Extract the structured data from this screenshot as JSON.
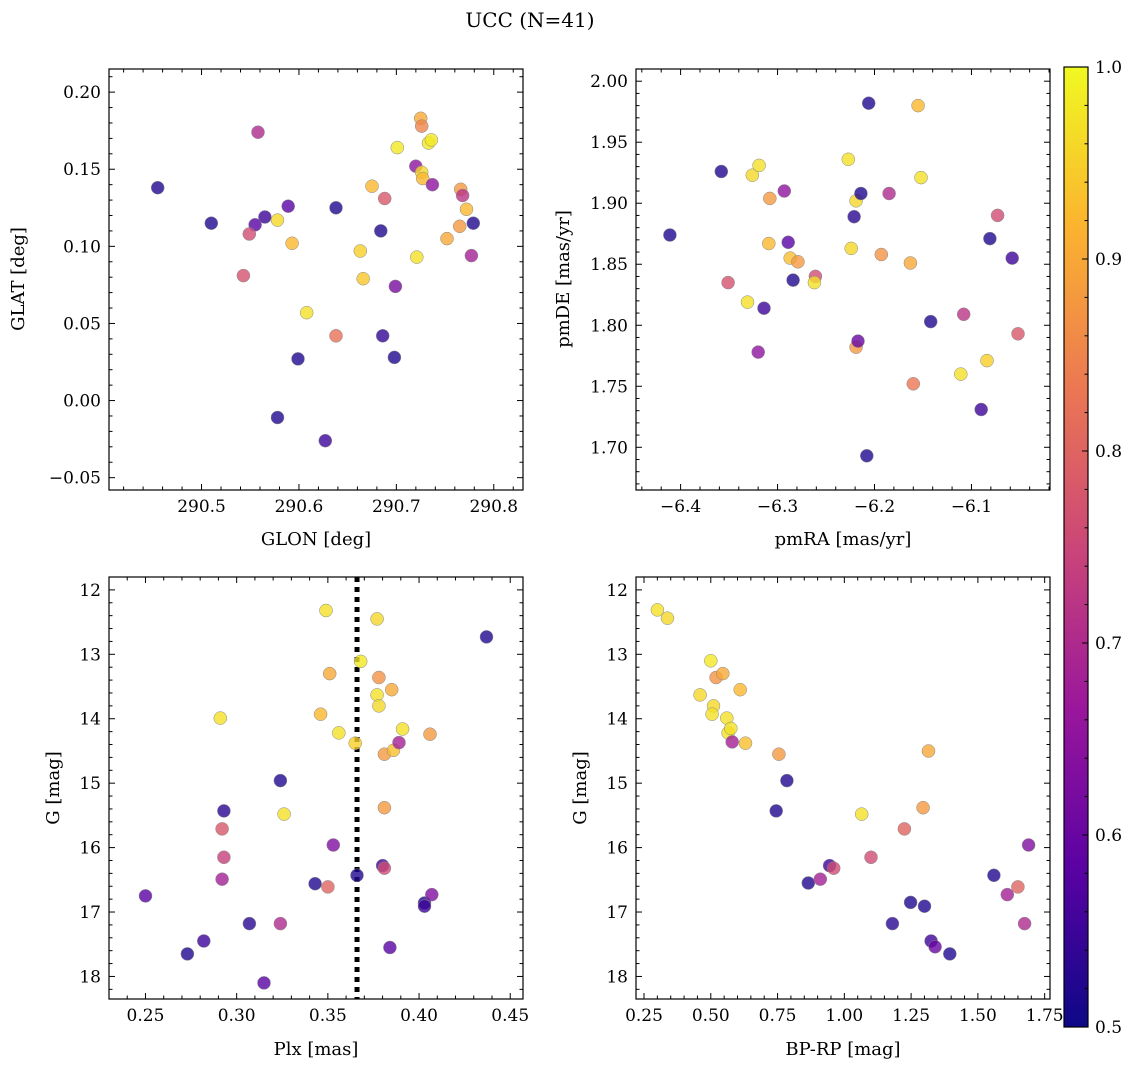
{
  "title": "UCC (N=41)",
  "colorbar": {
    "range": [
      0.5,
      1.0
    ],
    "ticks": [
      0.5,
      0.6,
      0.7,
      0.8,
      0.9,
      1.0
    ],
    "tick_labels": [
      "0.5",
      "0.6",
      "0.7",
      "0.8",
      "0.9",
      "1.0"
    ],
    "colormap": "plasma",
    "colors": [
      "#0d0887",
      "#5b02a3",
      "#9a179b",
      "#cb4678",
      "#eb7852",
      "#fbb32f",
      "#f0f921"
    ]
  },
  "chart_data": [
    {
      "type": "scatter",
      "xlabel": "GLON [deg]",
      "ylabel": "GLAT [deg]",
      "xlim": [
        290.405,
        290.83
      ],
      "ylim": [
        -0.058,
        0.215
      ],
      "xticks": [
        290.5,
        290.6,
        290.7,
        290.8
      ],
      "xtick_labels": [
        "290.5",
        "290.6",
        "290.7",
        "290.8"
      ],
      "yticks": [
        -0.05,
        0.0,
        0.05,
        0.1,
        0.15,
        0.2
      ],
      "ytick_labels": [
        "−0.05",
        "0.00",
        "0.05",
        "0.10",
        "0.15",
        "0.20"
      ],
      "points": [
        {
          "x": 290.455,
          "y": 0.138,
          "c": 0.52
        },
        {
          "x": 290.51,
          "y": 0.115,
          "c": 0.52
        },
        {
          "x": 290.558,
          "y": 0.174,
          "c": 0.7
        },
        {
          "x": 290.565,
          "y": 0.119,
          "c": 0.55
        },
        {
          "x": 290.555,
          "y": 0.114,
          "c": 0.58
        },
        {
          "x": 290.549,
          "y": 0.108,
          "c": 0.76
        },
        {
          "x": 290.543,
          "y": 0.081,
          "c": 0.77
        },
        {
          "x": 290.578,
          "y": 0.117,
          "c": 0.96
        },
        {
          "x": 290.589,
          "y": 0.126,
          "c": 0.58
        },
        {
          "x": 290.593,
          "y": 0.102,
          "c": 0.92
        },
        {
          "x": 290.608,
          "y": 0.057,
          "c": 0.97
        },
        {
          "x": 290.599,
          "y": 0.027,
          "c": 0.52
        },
        {
          "x": 290.578,
          "y": -0.011,
          "c": 0.52
        },
        {
          "x": 290.638,
          "y": 0.125,
          "c": 0.52
        },
        {
          "x": 290.638,
          "y": 0.042,
          "c": 0.82
        },
        {
          "x": 290.627,
          "y": -0.026,
          "c": 0.55
        },
        {
          "x": 290.663,
          "y": 0.097,
          "c": 0.95
        },
        {
          "x": 290.666,
          "y": 0.079,
          "c": 0.94
        },
        {
          "x": 290.675,
          "y": 0.139,
          "c": 0.92
        },
        {
          "x": 290.688,
          "y": 0.131,
          "c": 0.78
        },
        {
          "x": 290.684,
          "y": 0.11,
          "c": 0.52
        },
        {
          "x": 290.686,
          "y": 0.042,
          "c": 0.54
        },
        {
          "x": 290.699,
          "y": 0.074,
          "c": 0.62
        },
        {
          "x": 290.698,
          "y": 0.028,
          "c": 0.52
        },
        {
          "x": 290.701,
          "y": 0.164,
          "c": 0.98
        },
        {
          "x": 290.72,
          "y": 0.152,
          "c": 0.65
        },
        {
          "x": 290.725,
          "y": 0.183,
          "c": 0.9
        },
        {
          "x": 290.726,
          "y": 0.178,
          "c": 0.85
        },
        {
          "x": 290.726,
          "y": 0.148,
          "c": 0.96
        },
        {
          "x": 290.727,
          "y": 0.144,
          "c": 0.92
        },
        {
          "x": 290.733,
          "y": 0.167,
          "c": 0.98
        },
        {
          "x": 290.736,
          "y": 0.169,
          "c": 0.98
        },
        {
          "x": 290.721,
          "y": 0.093,
          "c": 0.97
        },
        {
          "x": 290.737,
          "y": 0.14,
          "c": 0.65
        },
        {
          "x": 290.752,
          "y": 0.105,
          "c": 0.9
        },
        {
          "x": 290.766,
          "y": 0.137,
          "c": 0.88
        },
        {
          "x": 290.765,
          "y": 0.113,
          "c": 0.88
        },
        {
          "x": 290.768,
          "y": 0.133,
          "c": 0.72
        },
        {
          "x": 290.772,
          "y": 0.124,
          "c": 0.92
        },
        {
          "x": 290.779,
          "y": 0.115,
          "c": 0.52
        },
        {
          "x": 290.777,
          "y": 0.094,
          "c": 0.68
        }
      ]
    },
    {
      "type": "scatter",
      "xlabel": "pmRA [mas/yr]",
      "ylabel": "pmDE [mas/yr]",
      "xlim": [
        -6.446,
        -6.019
      ],
      "ylim": [
        1.665,
        2.01
      ],
      "xticks": [
        -6.4,
        -6.3,
        -6.2,
        -6.1
      ],
      "xtick_labels": [
        "−6.4",
        "−6.3",
        "−6.2",
        "−6.1"
      ],
      "yticks": [
        1.7,
        1.75,
        1.8,
        1.85,
        1.9,
        1.95,
        2.0
      ],
      "ytick_labels": [
        "1.70",
        "1.75",
        "1.80",
        "1.85",
        "1.90",
        "1.95",
        "2.00"
      ],
      "points": [
        {
          "x": -6.411,
          "y": 1.874,
          "c": 0.52
        },
        {
          "x": -6.358,
          "y": 1.926,
          "c": 0.52
        },
        {
          "x": -6.351,
          "y": 1.835,
          "c": 0.77
        },
        {
          "x": -6.331,
          "y": 1.819,
          "c": 0.97
        },
        {
          "x": -6.326,
          "y": 1.923,
          "c": 0.96
        },
        {
          "x": -6.319,
          "y": 1.931,
          "c": 0.97
        },
        {
          "x": -6.314,
          "y": 1.814,
          "c": 0.55
        },
        {
          "x": -6.309,
          "y": 1.867,
          "c": 0.92
        },
        {
          "x": -6.308,
          "y": 1.904,
          "c": 0.88
        },
        {
          "x": -6.32,
          "y": 1.778,
          "c": 0.65
        },
        {
          "x": -6.293,
          "y": 1.91,
          "c": 0.65
        },
        {
          "x": -6.289,
          "y": 1.868,
          "c": 0.58
        },
        {
          "x": -6.287,
          "y": 1.855,
          "c": 0.93
        },
        {
          "x": -6.284,
          "y": 1.837,
          "c": 0.52
        },
        {
          "x": -6.279,
          "y": 1.852,
          "c": 0.88
        },
        {
          "x": -6.261,
          "y": 1.84,
          "c": 0.76
        },
        {
          "x": -6.262,
          "y": 1.835,
          "c": 0.97
        },
        {
          "x": -6.227,
          "y": 1.936,
          "c": 0.97
        },
        {
          "x": -6.224,
          "y": 1.863,
          "c": 0.96
        },
        {
          "x": -6.221,
          "y": 1.889,
          "c": 0.53
        },
        {
          "x": -6.219,
          "y": 1.782,
          "c": 0.88
        },
        {
          "x": -6.219,
          "y": 1.902,
          "c": 0.96
        },
        {
          "x": -6.217,
          "y": 1.787,
          "c": 0.6
        },
        {
          "x": -6.214,
          "y": 1.908,
          "c": 0.52
        },
        {
          "x": -6.206,
          "y": 1.982,
          "c": 0.52
        },
        {
          "x": -6.208,
          "y": 1.693,
          "c": 0.52
        },
        {
          "x": -6.185,
          "y": 1.908,
          "c": 0.7
        },
        {
          "x": -6.193,
          "y": 1.858,
          "c": 0.87
        },
        {
          "x": -6.163,
          "y": 1.851,
          "c": 0.9
        },
        {
          "x": -6.16,
          "y": 1.752,
          "c": 0.83
        },
        {
          "x": -6.155,
          "y": 1.98,
          "c": 0.92
        },
        {
          "x": -6.152,
          "y": 1.921,
          "c": 0.97
        },
        {
          "x": -6.142,
          "y": 1.803,
          "c": 0.52
        },
        {
          "x": -6.111,
          "y": 1.76,
          "c": 0.97
        },
        {
          "x": -6.108,
          "y": 1.809,
          "c": 0.72
        },
        {
          "x": -6.09,
          "y": 1.731,
          "c": 0.55
        },
        {
          "x": -6.084,
          "y": 1.771,
          "c": 0.95
        },
        {
          "x": -6.081,
          "y": 1.871,
          "c": 0.52
        },
        {
          "x": -6.073,
          "y": 1.89,
          "c": 0.76
        },
        {
          "x": -6.058,
          "y": 1.855,
          "c": 0.55
        },
        {
          "x": -6.052,
          "y": 1.793,
          "c": 0.78
        }
      ]
    },
    {
      "type": "scatter",
      "xlabel": "Plx [mas]",
      "ylabel": "G [mag]",
      "xlim": [
        0.23,
        0.457
      ],
      "ylim": [
        18.35,
        11.8
      ],
      "xticks": [
        0.25,
        0.3,
        0.35,
        0.4,
        0.45
      ],
      "xtick_labels": [
        "0.25",
        "0.30",
        "0.35",
        "0.40",
        "0.45"
      ],
      "yticks": [
        12,
        13,
        14,
        15,
        16,
        17,
        18
      ],
      "ytick_labels": [
        "12",
        "13",
        "14",
        "15",
        "16",
        "17",
        "18"
      ],
      "vline": {
        "x": 0.366
      },
      "points": [
        {
          "x": 0.25,
          "y": 16.75,
          "c": 0.58
        },
        {
          "x": 0.273,
          "y": 17.65,
          "c": 0.52
        },
        {
          "x": 0.282,
          "y": 17.45,
          "c": 0.55
        },
        {
          "x": 0.291,
          "y": 13.99,
          "c": 0.97
        },
        {
          "x": 0.293,
          "y": 15.43,
          "c": 0.53
        },
        {
          "x": 0.292,
          "y": 15.71,
          "c": 0.78
        },
        {
          "x": 0.293,
          "y": 16.15,
          "c": 0.74
        },
        {
          "x": 0.292,
          "y": 16.49,
          "c": 0.68
        },
        {
          "x": 0.307,
          "y": 17.18,
          "c": 0.53
        },
        {
          "x": 0.315,
          "y": 18.1,
          "c": 0.58
        },
        {
          "x": 0.324,
          "y": 14.96,
          "c": 0.52
        },
        {
          "x": 0.326,
          "y": 15.48,
          "c": 0.97
        },
        {
          "x": 0.324,
          "y": 17.18,
          "c": 0.7
        },
        {
          "x": 0.343,
          "y": 16.56,
          "c": 0.52
        },
        {
          "x": 0.349,
          "y": 12.32,
          "c": 0.97
        },
        {
          "x": 0.346,
          "y": 13.93,
          "c": 0.92
        },
        {
          "x": 0.351,
          "y": 13.3,
          "c": 0.9
        },
        {
          "x": 0.35,
          "y": 16.61,
          "c": 0.8
        },
        {
          "x": 0.353,
          "y": 15.96,
          "c": 0.63
        },
        {
          "x": 0.356,
          "y": 14.22,
          "c": 0.97
        },
        {
          "x": 0.365,
          "y": 14.38,
          "c": 0.95
        },
        {
          "x": 0.366,
          "y": 16.43,
          "c": 0.52
        },
        {
          "x": 0.368,
          "y": 13.11,
          "c": 0.98
        },
        {
          "x": 0.377,
          "y": 12.45,
          "c": 0.96
        },
        {
          "x": 0.378,
          "y": 13.36,
          "c": 0.87
        },
        {
          "x": 0.377,
          "y": 13.63,
          "c": 0.97
        },
        {
          "x": 0.378,
          "y": 13.8,
          "c": 0.96
        },
        {
          "x": 0.381,
          "y": 14.55,
          "c": 0.88
        },
        {
          "x": 0.381,
          "y": 15.38,
          "c": 0.88
        },
        {
          "x": 0.38,
          "y": 16.28,
          "c": 0.55
        },
        {
          "x": 0.381,
          "y": 16.32,
          "c": 0.76
        },
        {
          "x": 0.384,
          "y": 17.55,
          "c": 0.58
        },
        {
          "x": 0.385,
          "y": 13.55,
          "c": 0.9
        },
        {
          "x": 0.386,
          "y": 14.49,
          "c": 0.93
        },
        {
          "x": 0.389,
          "y": 14.37,
          "c": 0.68
        },
        {
          "x": 0.391,
          "y": 14.16,
          "c": 0.97
        },
        {
          "x": 0.403,
          "y": 16.86,
          "c": 0.52
        },
        {
          "x": 0.403,
          "y": 16.91,
          "c": 0.55
        },
        {
          "x": 0.406,
          "y": 14.24,
          "c": 0.88
        },
        {
          "x": 0.407,
          "y": 16.73,
          "c": 0.63
        },
        {
          "x": 0.437,
          "y": 12.73,
          "c": 0.52
        }
      ]
    },
    {
      "type": "scatter",
      "xlabel": "BP-RP [mag]",
      "ylabel": "G [mag]",
      "xlim": [
        0.22,
        1.77
      ],
      "ylim": [
        18.35,
        11.8
      ],
      "xticks": [
        0.25,
        0.5,
        0.75,
        1.0,
        1.25,
        1.5,
        1.75
      ],
      "xtick_labels": [
        "0.25",
        "0.50",
        "0.75",
        "1.00",
        "1.25",
        "1.50",
        "1.75"
      ],
      "yticks": [
        12,
        13,
        14,
        15,
        16,
        17,
        18
      ],
      "ytick_labels": [
        "12",
        "13",
        "14",
        "15",
        "16",
        "17",
        "18"
      ],
      "points": [
        {
          "x": 0.3,
          "y": 12.31,
          "c": 0.97
        },
        {
          "x": 0.338,
          "y": 12.44,
          "c": 0.96
        },
        {
          "x": 0.46,
          "y": 13.63,
          "c": 0.96
        },
        {
          "x": 0.5,
          "y": 13.1,
          "c": 0.98
        },
        {
          "x": 0.51,
          "y": 13.8,
          "c": 0.96
        },
        {
          "x": 0.505,
          "y": 13.93,
          "c": 0.97
        },
        {
          "x": 0.52,
          "y": 13.36,
          "c": 0.87
        },
        {
          "x": 0.545,
          "y": 13.3,
          "c": 0.9
        },
        {
          "x": 0.56,
          "y": 13.99,
          "c": 0.97
        },
        {
          "x": 0.565,
          "y": 14.22,
          "c": 0.97
        },
        {
          "x": 0.575,
          "y": 14.15,
          "c": 0.97
        },
        {
          "x": 0.58,
          "y": 14.36,
          "c": 0.68
        },
        {
          "x": 0.61,
          "y": 13.55,
          "c": 0.92
        },
        {
          "x": 0.63,
          "y": 14.38,
          "c": 0.93
        },
        {
          "x": 0.745,
          "y": 15.43,
          "c": 0.52
        },
        {
          "x": 0.755,
          "y": 14.55,
          "c": 0.88
        },
        {
          "x": 0.785,
          "y": 14.96,
          "c": 0.52
        },
        {
          "x": 0.865,
          "y": 16.55,
          "c": 0.52
        },
        {
          "x": 0.91,
          "y": 16.49,
          "c": 0.68
        },
        {
          "x": 0.945,
          "y": 16.28,
          "c": 0.55
        },
        {
          "x": 0.96,
          "y": 16.32,
          "c": 0.76
        },
        {
          "x": 1.065,
          "y": 15.48,
          "c": 0.97
        },
        {
          "x": 1.1,
          "y": 16.15,
          "c": 0.76
        },
        {
          "x": 1.18,
          "y": 17.18,
          "c": 0.53
        },
        {
          "x": 1.225,
          "y": 15.71,
          "c": 0.8
        },
        {
          "x": 1.248,
          "y": 16.85,
          "c": 0.52
        },
        {
          "x": 1.295,
          "y": 15.38,
          "c": 0.88
        },
        {
          "x": 1.3,
          "y": 16.91,
          "c": 0.52
        },
        {
          "x": 1.315,
          "y": 14.5,
          "c": 0.9
        },
        {
          "x": 1.325,
          "y": 17.45,
          "c": 0.55
        },
        {
          "x": 1.34,
          "y": 17.54,
          "c": 0.6
        },
        {
          "x": 1.395,
          "y": 17.65,
          "c": 0.52
        },
        {
          "x": 1.56,
          "y": 16.43,
          "c": 0.52
        },
        {
          "x": 1.61,
          "y": 16.73,
          "c": 0.68
        },
        {
          "x": 1.65,
          "y": 16.61,
          "c": 0.8
        },
        {
          "x": 1.675,
          "y": 17.18,
          "c": 0.7
        },
        {
          "x": 1.69,
          "y": 15.96,
          "c": 0.63
        }
      ]
    }
  ]
}
